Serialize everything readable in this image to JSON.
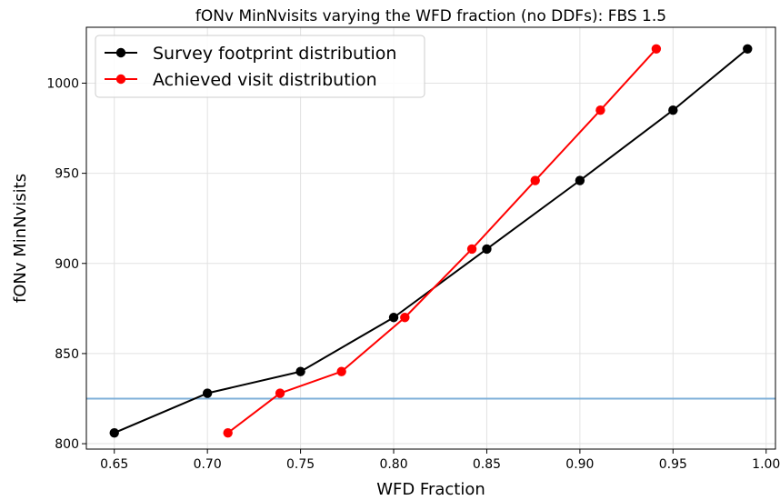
{
  "chart_data": {
    "type": "line",
    "title": "fONv MinNvisits varying the WFD fraction (no DDFs): FBS 1.5",
    "xlabel": "WFD Fraction",
    "ylabel": "fONv MinNvisits",
    "xlim": [
      0.635,
      1.005
    ],
    "ylim": [
      797,
      1031
    ],
    "xticks": [
      "0.65",
      "0.70",
      "0.75",
      "0.80",
      "0.85",
      "0.90",
      "0.95",
      "1.00"
    ],
    "yticks": [
      "800",
      "850",
      "900",
      "950",
      "1000"
    ],
    "grid": true,
    "legend_position": "top-left",
    "reference_line": {
      "y": 825,
      "color": "#7fb0d9"
    },
    "series": [
      {
        "name": "Survey footprint distribution",
        "color": "#000000",
        "x": [
          0.65,
          0.7,
          0.75,
          0.8,
          0.85,
          0.9,
          0.95,
          0.99
        ],
        "y": [
          806,
          828,
          840,
          870,
          908,
          946,
          985,
          1019
        ]
      },
      {
        "name": "Achieved visit distribution",
        "color": "#ff0000",
        "x": [
          0.711,
          0.739,
          0.772,
          0.806,
          0.842,
          0.876,
          0.911,
          0.941
        ],
        "y": [
          806,
          828,
          840,
          870,
          908,
          946,
          985,
          1019
        ]
      }
    ]
  }
}
